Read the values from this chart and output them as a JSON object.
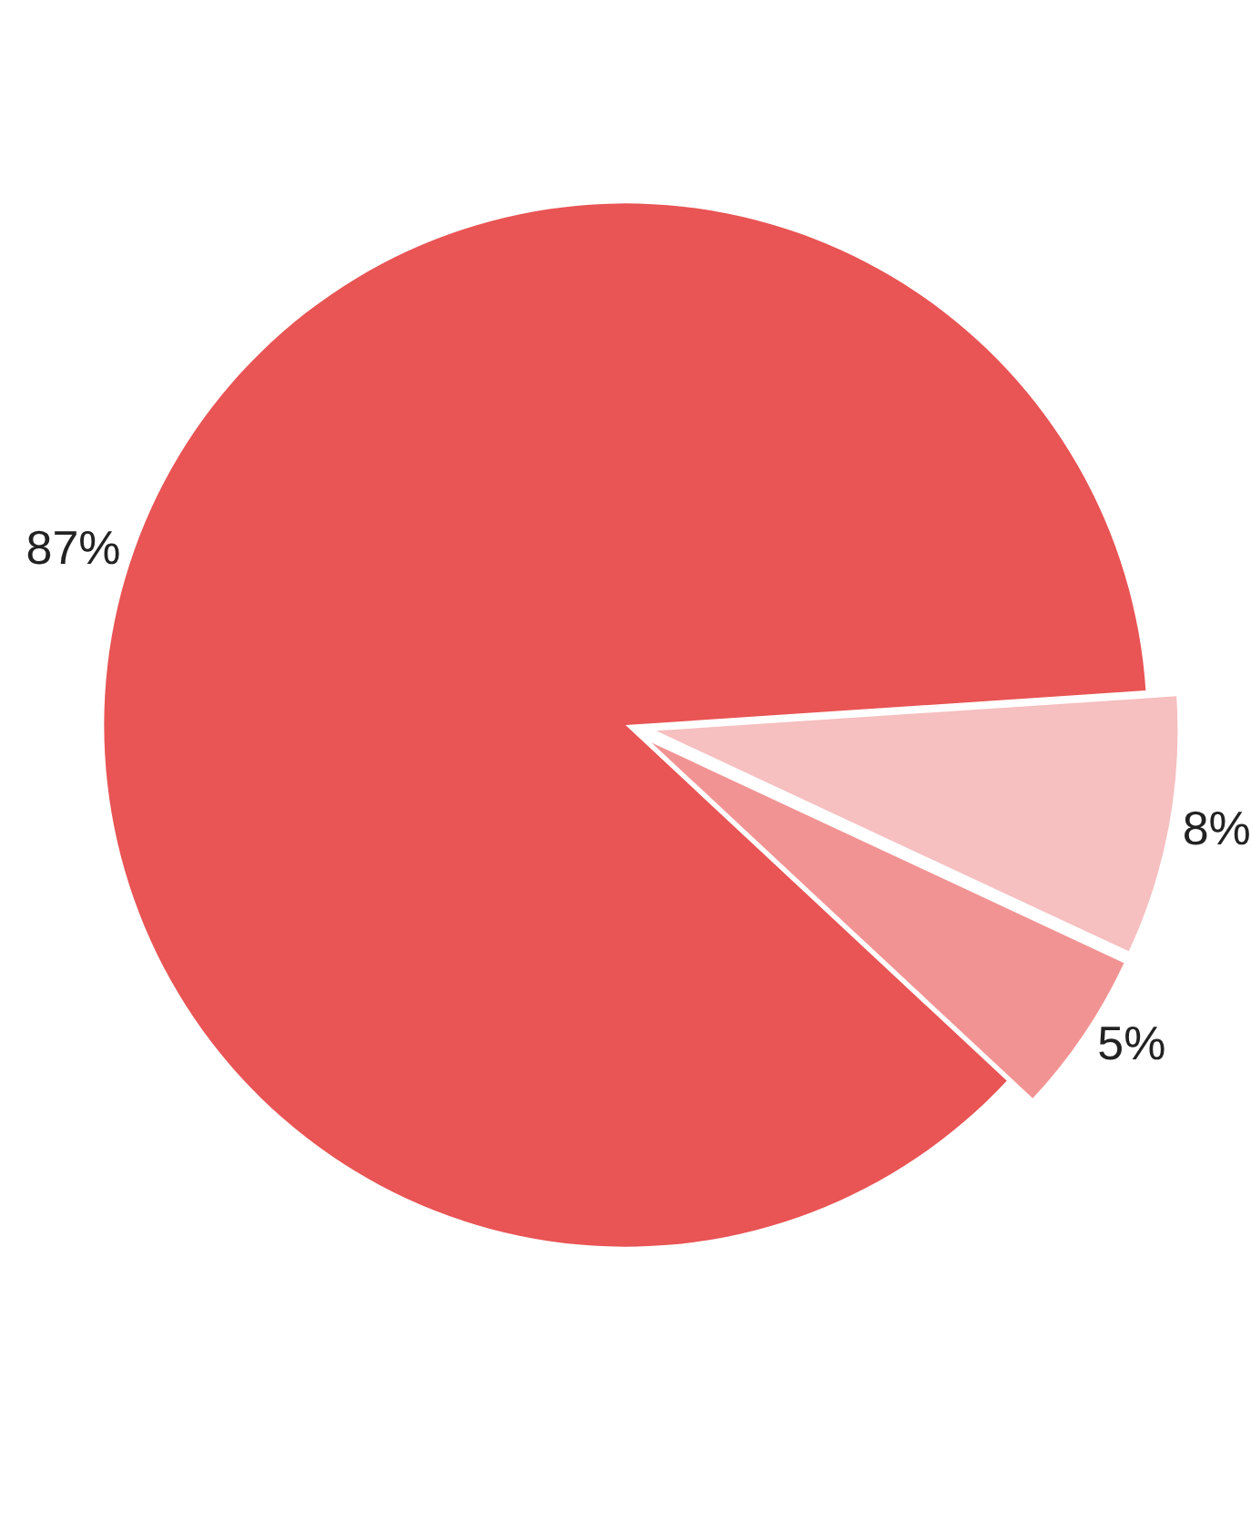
{
  "chart_data": {
    "type": "pie",
    "categories": [
      null,
      null,
      null
    ],
    "values": [
      87,
      5,
      8
    ],
    "colors": [
      "#e95454",
      "#f29393",
      "#f6bfc0"
    ],
    "value_labels": [
      "87%",
      "5%",
      "8%"
    ],
    "legend": false
  }
}
